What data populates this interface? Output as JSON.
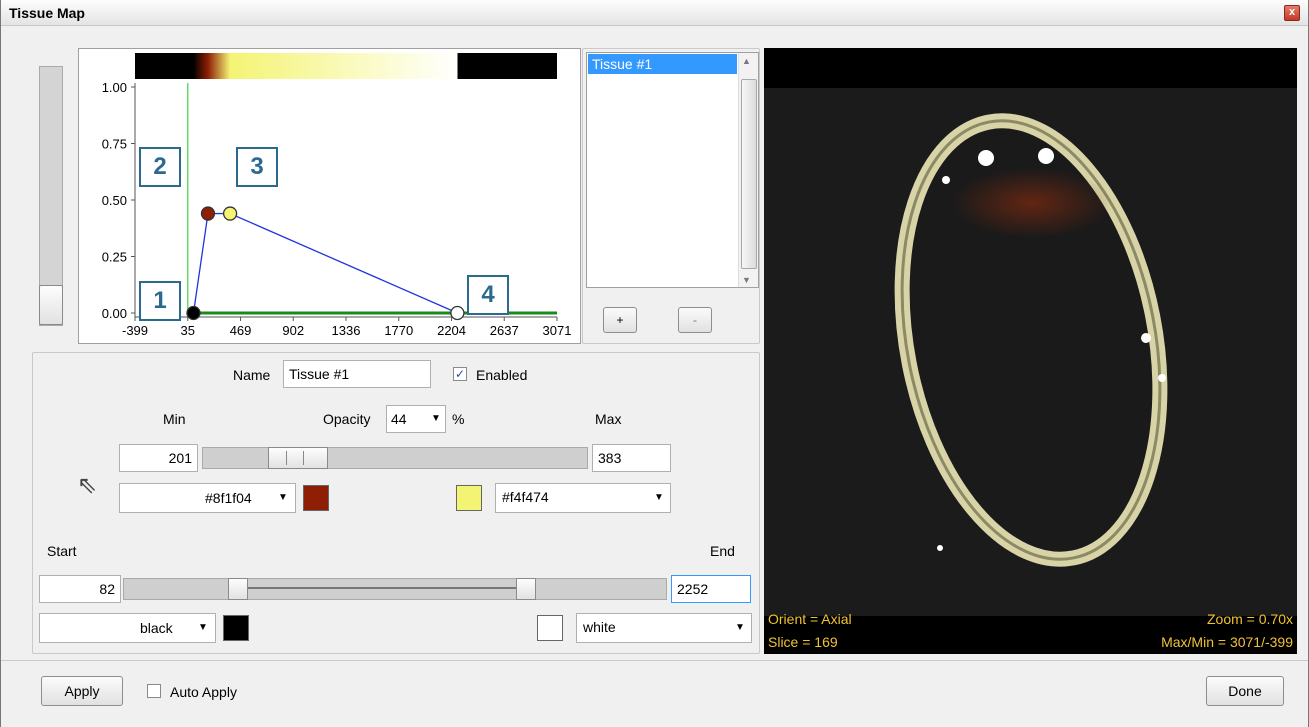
{
  "window": {
    "title": "Tissue Map",
    "close_label": "x"
  },
  "chart_data": {
    "type": "line",
    "title": "",
    "xlabel": "",
    "ylabel": "",
    "xlim": [
      -399,
      3071
    ],
    "ylim": [
      0,
      1
    ],
    "x_ticks": [
      "-399",
      "35",
      "469",
      "902",
      "1336",
      "1770",
      "2204",
      "2637",
      "3071"
    ],
    "y_ticks": [
      "0.00",
      "0.25",
      "0.50",
      "0.75",
      "1.00"
    ],
    "colorbar": {
      "range": [
        -399,
        3071
      ],
      "stops": [
        {
          "x": -399,
          "color": "#000000"
        },
        {
          "x": 82,
          "color": "#000000"
        },
        {
          "x": 201,
          "color": "#8f1f04"
        },
        {
          "x": 383,
          "color": "#f4f474"
        },
        {
          "x": 2252,
          "color": "#ffffff"
        },
        {
          "x": 2253,
          "color": "#000000"
        },
        {
          "x": 3071,
          "color": "#000000"
        }
      ]
    },
    "series": [
      {
        "values": [
          {
            "x": 82,
            "y": 0.0,
            "color": "#000000"
          },
          {
            "x": 201,
            "y": 0.44,
            "color": "#8f1f04"
          },
          {
            "x": 383,
            "y": 0.44,
            "color": "#f4f474"
          },
          {
            "x": 2252,
            "y": 0.0,
            "color": "#ffffff"
          }
        ]
      }
    ],
    "marker_lines": [
      {
        "x": 35
      }
    ],
    "baseline": {
      "from": 82,
      "to": 3071
    }
  },
  "callouts": [
    "1",
    "2",
    "3",
    "4"
  ],
  "tissue_list": {
    "items": [
      "Tissue #1"
    ],
    "add_label": "+",
    "remove_label": "-"
  },
  "editor": {
    "name_label": "Name",
    "name_value": "Tissue #1",
    "enabled_label": "Enabled",
    "enabled_checked": "✓",
    "min_label": "Min",
    "opacity_label": "Opacity",
    "opacity_value": "44",
    "percent_label": "%",
    "max_label": "Max",
    "min_value": "201",
    "max_value": "383",
    "min_color": "#8f1f04",
    "max_color": "#f4f474",
    "start_label": "Start",
    "end_label": "End",
    "start_value": "82",
    "end_value": "2252",
    "start_color": "black",
    "end_color": "white",
    "min_slider_fraction": 0.2,
    "start_slider_fraction": 0.2,
    "end_slider_fraction": 0.75
  },
  "viewport": {
    "orient": "Orient = Axial",
    "slice": "Slice = 169",
    "zoom": "Zoom = 0.70x",
    "maxmin": "Max/Min = 3071/-399"
  },
  "footer": {
    "apply_label": "Apply",
    "auto_apply_label": "Auto Apply",
    "done_label": "Done"
  },
  "colors": {
    "accent": "#3399ff",
    "callout": "#2b6a8e",
    "overlay_text": "#f1c232"
  }
}
